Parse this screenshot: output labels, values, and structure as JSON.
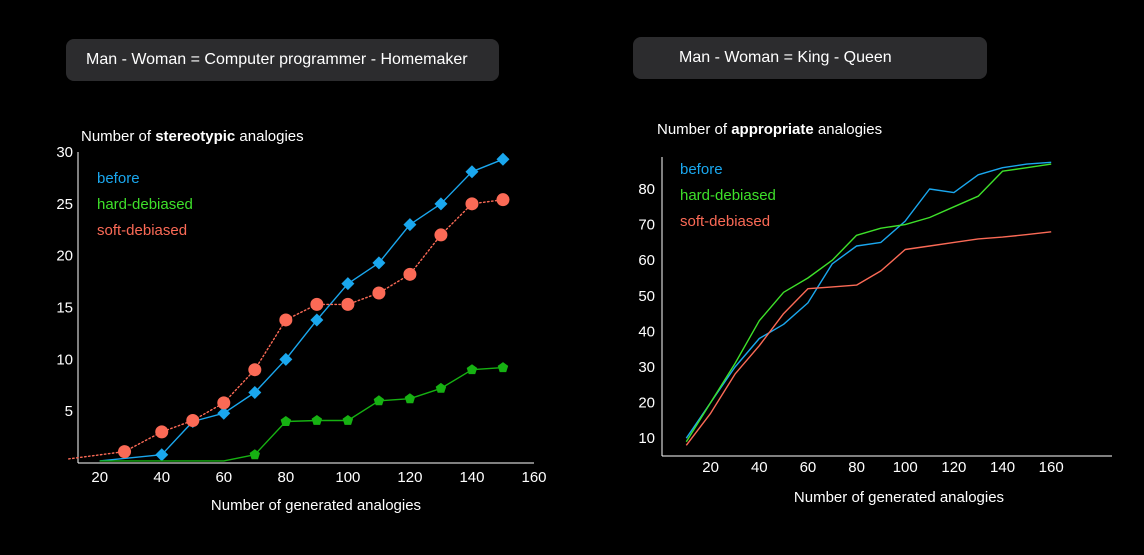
{
  "header": {
    "left_analogy": "Man - Woman = Computer programmer - Homemaker",
    "right_analogy": "Man - Woman = King - Queen"
  },
  "chart_data": [
    {
      "type": "line",
      "title_prefix": "Number of ",
      "title_bold": "stereotypic",
      "title_suffix": " analogies",
      "xlabel": "Number of generated analogies",
      "ylabel": "",
      "xlim": [
        13,
        160
      ],
      "ylim": [
        0,
        30
      ],
      "xticks": [
        20,
        40,
        60,
        80,
        100,
        120,
        140,
        160
      ],
      "yticks": [
        5,
        10,
        15,
        20,
        25,
        30
      ],
      "grid": false,
      "legend_placement": "top-left",
      "series": [
        {
          "name": "before",
          "color": "#1aa7ee",
          "marker": "diamond",
          "line": "solid",
          "x": [
            20,
            40,
            50,
            60,
            70,
            80,
            90,
            100,
            110,
            120,
            130,
            140,
            150
          ],
          "y": [
            0.2,
            0.8,
            4,
            4.8,
            6.8,
            10,
            13.8,
            17.3,
            19.3,
            23,
            25,
            28.1,
            29.3
          ]
        },
        {
          "name": "hard-debiased",
          "color": "#16b112",
          "legend_color": "#3ee02a",
          "marker": "pentagon",
          "line": "solid",
          "x": [
            20,
            40,
            50,
            60,
            70,
            80,
            90,
            100,
            110,
            120,
            130,
            140,
            150
          ],
          "y": [
            0.2,
            0.2,
            0.2,
            0.2,
            0.8,
            4,
            4.1,
            4.1,
            6,
            6.2,
            7.2,
            9,
            9.2
          ]
        },
        {
          "name": "soft-debiased",
          "color": "#fb6a56",
          "marker": "circle",
          "line": "dotted",
          "x": [
            10,
            28,
            40,
            50,
            60,
            70,
            80,
            90,
            100,
            110,
            120,
            130,
            140,
            150
          ],
          "y": [
            0.4,
            1.1,
            3,
            4.1,
            5.8,
            9,
            13.8,
            15.3,
            15.3,
            16.4,
            18.2,
            22,
            25,
            25.4
          ]
        }
      ]
    },
    {
      "type": "line",
      "title_prefix": "Number of ",
      "title_bold": "appropriate",
      "title_suffix": " analogies",
      "xlabel": "Number of generated analogies",
      "ylabel": "",
      "xlim": [
        0,
        185
      ],
      "ylim": [
        5,
        89
      ],
      "xticks": [
        20,
        40,
        60,
        80,
        100,
        120,
        140,
        160
      ],
      "yticks": [
        10,
        20,
        30,
        40,
        50,
        60,
        70,
        80
      ],
      "grid": false,
      "legend_placement": "top-left",
      "series": [
        {
          "name": "before",
          "color": "#1aa7ee",
          "marker": "none",
          "line": "solid",
          "x": [
            10,
            20,
            30,
            40,
            50,
            60,
            70,
            80,
            90,
            100,
            110,
            120,
            130,
            140,
            150,
            160
          ],
          "y": [
            10,
            20,
            30,
            38,
            42,
            48,
            59,
            64,
            65,
            71,
            80,
            79,
            84,
            86,
            87,
            87.5
          ]
        },
        {
          "name": "hard-debiased",
          "color": "#3ee02a",
          "marker": "none",
          "line": "solid",
          "x": [
            10,
            20,
            30,
            40,
            50,
            60,
            70,
            80,
            90,
            100,
            110,
            120,
            130,
            140,
            150,
            160
          ],
          "y": [
            9,
            20,
            31,
            43,
            51,
            55,
            60,
            67,
            69,
            70,
            72,
            75,
            78,
            85,
            86,
            87
          ]
        },
        {
          "name": "soft-debiased",
          "color": "#fb6a56",
          "marker": "none",
          "line": "solid",
          "x": [
            10,
            20,
            30,
            40,
            50,
            60,
            70,
            80,
            90,
            100,
            110,
            120,
            130,
            140,
            150,
            160
          ],
          "y": [
            8,
            17,
            28,
            36,
            45,
            52,
            52.5,
            53,
            57,
            63,
            64,
            65,
            66,
            66.5,
            67.2,
            68
          ]
        }
      ]
    }
  ]
}
